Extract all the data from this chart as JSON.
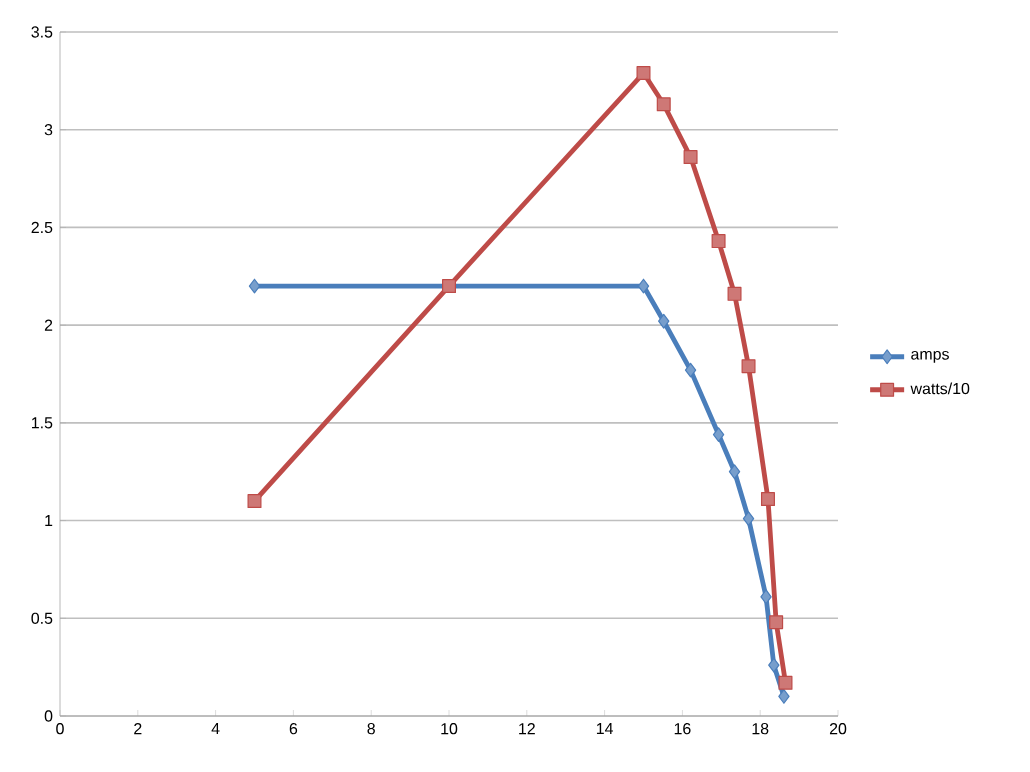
{
  "chart_data": {
    "type": "line",
    "series": [
      {
        "name": "amps",
        "color": "#4a7ebb",
        "marker": "diamond",
        "x": [
          5,
          15,
          15.52,
          16.21,
          16.93,
          17.34,
          17.7,
          18.15,
          18.35,
          18.61
        ],
        "values": [
          2.2,
          2.2,
          2.02,
          1.77,
          1.44,
          1.25,
          1.01,
          0.61,
          0.26,
          0.1
        ]
      },
      {
        "name": "watts/10",
        "color": "#be4b48",
        "marker": "square",
        "x": [
          5,
          10,
          15,
          15.52,
          16.21,
          16.93,
          17.34,
          17.7,
          18.2,
          18.41,
          18.65
        ],
        "values": [
          1.1,
          2.2,
          3.29,
          3.13,
          2.86,
          2.43,
          2.16,
          1.79,
          1.11,
          0.48,
          0.17
        ]
      }
    ],
    "xlim": [
      0,
      20
    ],
    "ylim": [
      0,
      3.5
    ],
    "xticks": [
      0,
      2,
      4,
      6,
      8,
      10,
      12,
      14,
      16,
      18,
      20
    ],
    "yticks": [
      0,
      0.5,
      1,
      1.5,
      2,
      2.5,
      3,
      3.5
    ],
    "grid": "y",
    "legend": "right"
  }
}
